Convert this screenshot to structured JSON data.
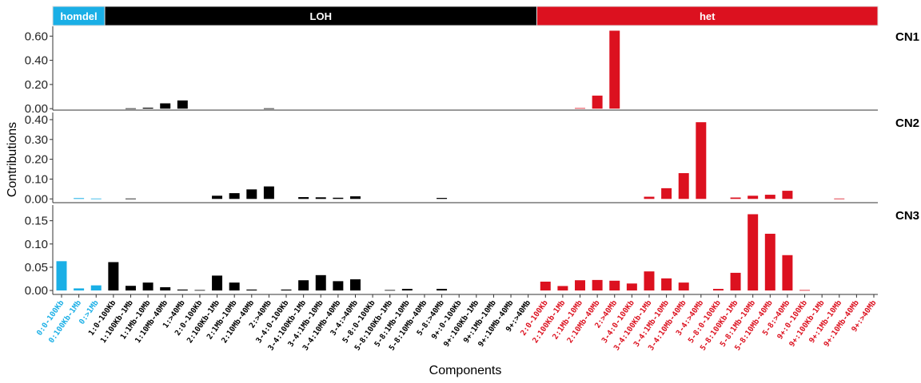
{
  "chart_data": {
    "type": "bar",
    "xlabel": "Components",
    "ylabel": "Contributions",
    "grid": false,
    "legend": "none",
    "categories": [
      "0:0-100Kb",
      "0:100Kb-1Mb",
      "0:>1Mb",
      "1:0-100Kb",
      "1:100Kb-1Mb",
      "1:1Mb-10Mb",
      "1:10Mb-40Mb",
      "1:>40Mb",
      "2:0-100Kb",
      "2:100Kb-1Mb",
      "2:1Mb-10Mb",
      "2:10Mb-40Mb",
      "2:>40Mb",
      "3-4:0-100Kb",
      "3-4:100Kb-1Mb",
      "3-4:1Mb-10Mb",
      "3-4:10Mb-40Mb",
      "3-4:>40Mb",
      "5-8:0-100Kb",
      "5-8:100Kb-1Mb",
      "5-8:1Mb-10Mb",
      "5-8:10Mb-40Mb",
      "5-8:>40Mb",
      "9+:0-100Kb",
      "9+:100Kb-1Mb",
      "9+:1Mb-10Mb",
      "9+:10Mb-40Mb",
      "9+:>40Mb",
      "2:0-100Kb",
      "2:100Kb-1Mb",
      "2:1Mb-10Mb",
      "2:10Mb-40Mb",
      "2:>40Mb",
      "3-4:0-100Kb",
      "3-4:100Kb-1Mb",
      "3-4:1Mb-10Mb",
      "3-4:10Mb-40Mb",
      "3-4:>40Mb",
      "5-8:0-100Kb",
      "5-8:100Kb-1Mb",
      "5-8:1Mb-10Mb",
      "5-8:10Mb-40Mb",
      "5-8:>40Mb",
      "9+:0-100Kb",
      "9+:100Kb-1Mb",
      "9+:1Mb-10Mb",
      "9+:10Mb-40Mb",
      "9+:>40Mb"
    ],
    "groups": [
      {
        "name": "homdel",
        "count": 3,
        "color": "#1AAFE6"
      },
      {
        "name": "LOH",
        "count": 25,
        "color": "#000000"
      },
      {
        "name": "het",
        "count": 20,
        "color": "#DC111F"
      }
    ],
    "panels": [
      {
        "name": "CN1",
        "ylim": [
          -0.012,
          0.681
        ],
        "yticks": [
          "0.00",
          "0.20",
          "0.40",
          "0.60"
        ],
        "ytick_values": [
          0,
          0.2,
          0.4,
          0.6
        ],
        "values": [
          0,
          0,
          0,
          0,
          0.003,
          0.008,
          0.044,
          0.068,
          0,
          0,
          0,
          0,
          0.003,
          0,
          0,
          0,
          0,
          0,
          0,
          0,
          0,
          0,
          0,
          0,
          0,
          0,
          0,
          0,
          0,
          0,
          0.005,
          0.108,
          0.645,
          0,
          0,
          0,
          0,
          0,
          0,
          0,
          0,
          0,
          0,
          0,
          0,
          0,
          0,
          0
        ]
      },
      {
        "name": "CN2",
        "ylim": [
          -0.019,
          0.436
        ],
        "yticks": [
          "0.00",
          "0.10",
          "0.20",
          "0.30",
          "0.40"
        ],
        "ytick_values": [
          0,
          0.1,
          0.2,
          0.3,
          0.4
        ],
        "values": [
          0,
          0.004,
          0.002,
          0,
          0.002,
          0,
          0,
          0,
          0,
          0.016,
          0.029,
          0.048,
          0.063,
          0,
          0.009,
          0.008,
          0.006,
          0.013,
          0,
          0,
          0,
          0,
          0.005,
          0,
          0,
          0,
          0,
          0,
          0,
          0,
          0,
          0,
          0,
          0,
          0.011,
          0.054,
          0.13,
          0.387,
          0,
          0.007,
          0.016,
          0.021,
          0.041,
          0,
          0,
          0.002,
          0,
          0
        ]
      },
      {
        "name": "CN3",
        "ylim": [
          -0.0085,
          0.1837
        ],
        "yticks": [
          "0.00",
          "0.05",
          "0.10",
          "0.15"
        ],
        "ytick_values": [
          0,
          0.05,
          0.1,
          0.15
        ],
        "values": [
          0.063,
          0.0045,
          0.011,
          0.061,
          0.01,
          0.017,
          0.007,
          0.002,
          0.001,
          0.032,
          0.017,
          0.002,
          0,
          0.002,
          0.022,
          0.033,
          0.02,
          0.024,
          0,
          0.001,
          0.0035,
          0,
          0.0035,
          0,
          0,
          0,
          0,
          0,
          0.019,
          0.0096,
          0.022,
          0.0226,
          0.021,
          0.015,
          0.041,
          0.026,
          0.017,
          0,
          0.0034,
          0.038,
          0.164,
          0.122,
          0.076,
          0.001,
          0,
          0,
          0,
          0
        ]
      }
    ]
  }
}
